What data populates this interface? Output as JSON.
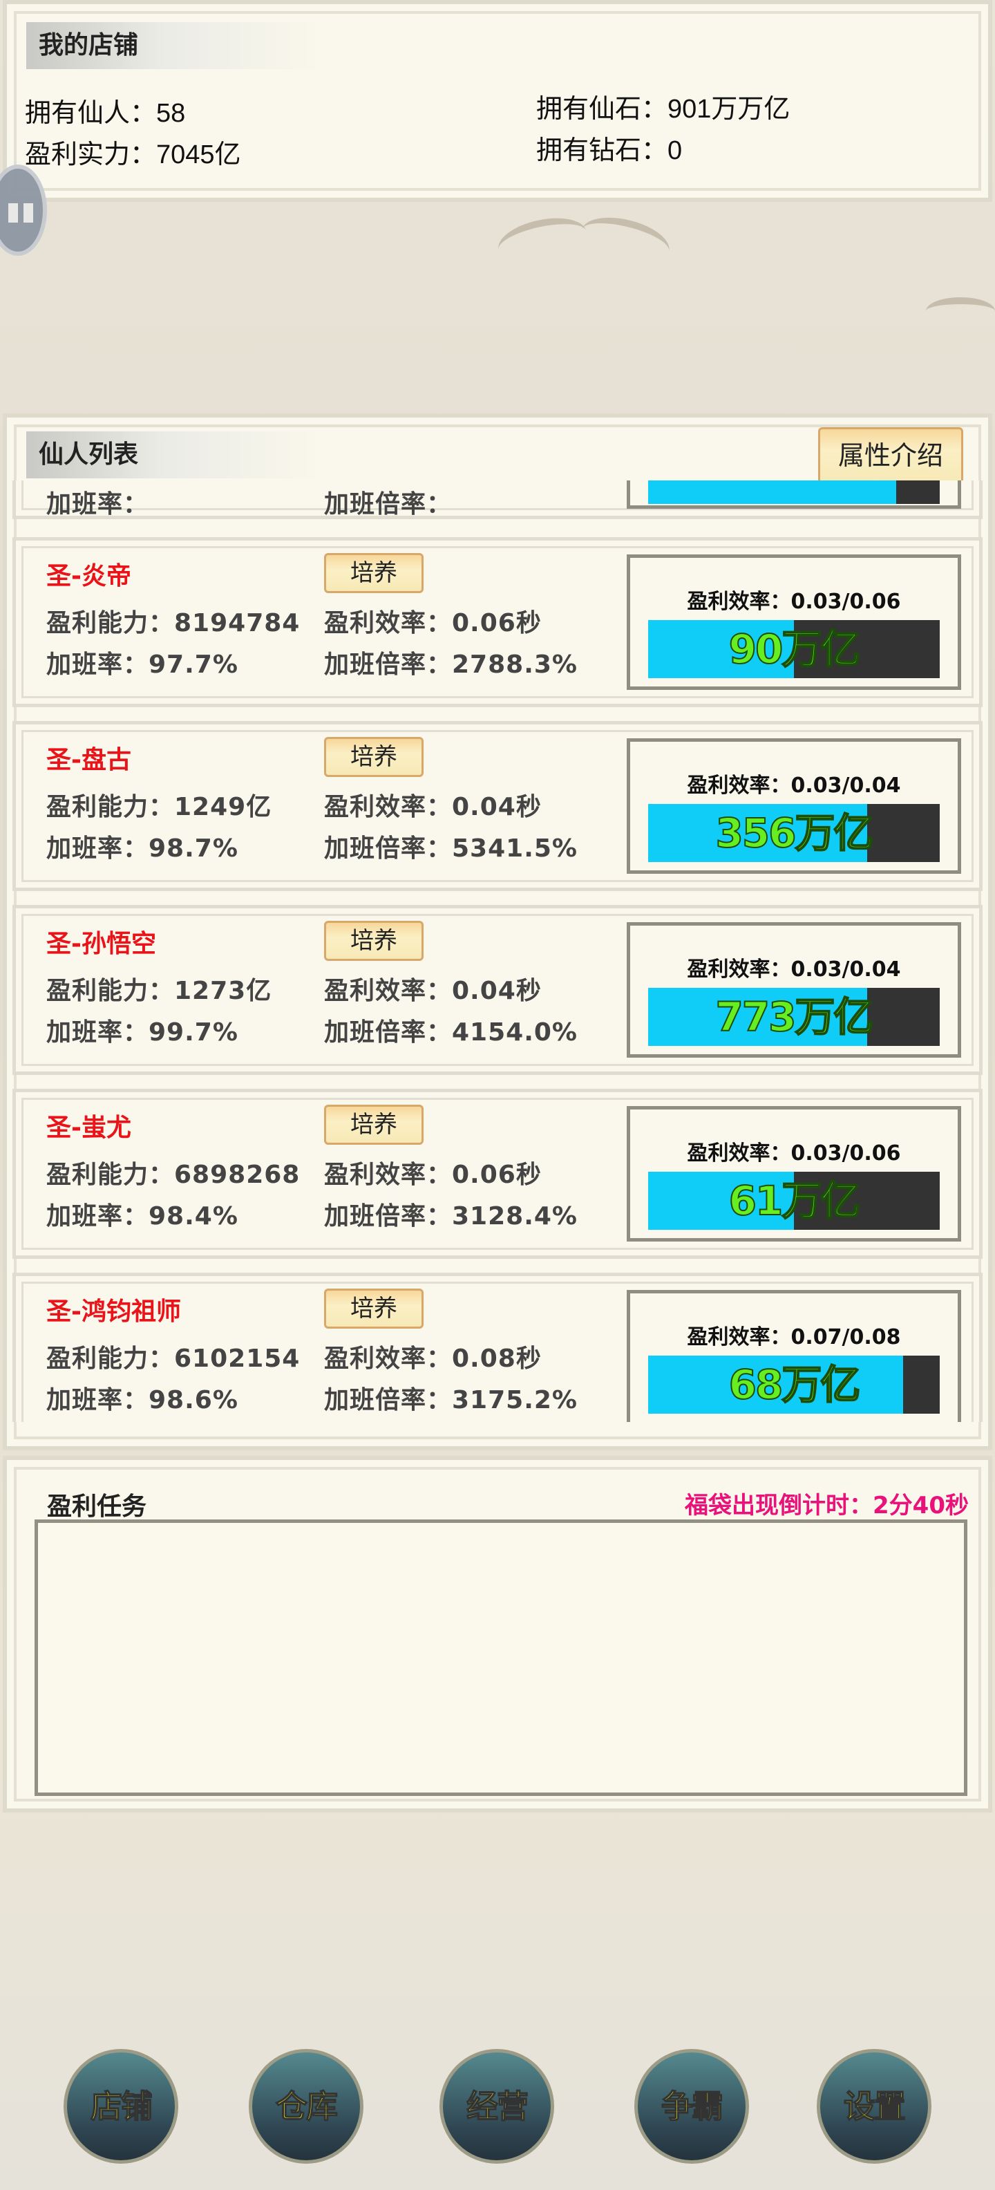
{
  "shop": {
    "title": "我的店铺",
    "immortals": "拥有仙人：58",
    "profit_power": "盈利实力：7045亿",
    "stones": "拥有仙石：901万万亿",
    "diamonds": "拥有钻石：0"
  },
  "list": {
    "title": "仙人列表",
    "attr_button": "属性介绍",
    "train_label": "培养",
    "partial": {
      "overtime_rate": "加班率：",
      "overtime_mult": "加班倍率：",
      "progress": 0.85
    },
    "items": [
      {
        "name": "圣-炎帝",
        "ability": "盈利能力：8194784",
        "efficiency": "盈利效率：0.06秒",
        "overtime_rate": "加班率：97.7%",
        "overtime_mult": "加班倍率：2788.3%",
        "progress_text": "盈利效率：0.03/0.06",
        "progress": 0.5,
        "float_text": "90万亿"
      },
      {
        "name": "圣-盘古",
        "ability": "盈利能力：1249亿",
        "efficiency": "盈利效率：0.04秒",
        "overtime_rate": "加班率：98.7%",
        "overtime_mult": "加班倍率：5341.5%",
        "progress_text": "盈利效率：0.03/0.04",
        "progress": 0.75,
        "float_text": "356万亿"
      },
      {
        "name": "圣-孙悟空",
        "ability": "盈利能力：1273亿",
        "efficiency": "盈利效率：0.04秒",
        "overtime_rate": "加班率：99.7%",
        "overtime_mult": "加班倍率：4154.0%",
        "progress_text": "盈利效率：0.03/0.04",
        "progress": 0.75,
        "float_text": "773万亿"
      },
      {
        "name": "圣-蚩尤",
        "ability": "盈利能力：6898268",
        "efficiency": "盈利效率：0.06秒",
        "overtime_rate": "加班率：98.4%",
        "overtime_mult": "加班倍率：3128.4%",
        "progress_text": "盈利效率：0.03/0.06",
        "progress": 0.5,
        "float_text": "61万亿"
      },
      {
        "name": "圣-鸿钧祖师",
        "ability": "盈利能力：6102154",
        "efficiency": "盈利效率：0.08秒",
        "overtime_rate": "加班率：98.6%",
        "overtime_mult": "加班倍率：3175.2%",
        "progress_text": "盈利效率：0.07/0.08",
        "progress": 0.875,
        "float_text": "68万亿"
      }
    ]
  },
  "task": {
    "title": "盈利任务",
    "countdown": "福袋出现倒计时：2分40秒"
  },
  "nav": [
    {
      "label": "店铺"
    },
    {
      "label": "仓库"
    },
    {
      "label": "经营"
    },
    {
      "label": "争霸"
    },
    {
      "label": "设置"
    }
  ],
  "colors": {
    "name": "#e8141a",
    "countdown": "#e8127a",
    "bar_fill": "#10cdf8",
    "bar_bg": "#333333",
    "nav_text": "#f5f51a",
    "float_text": "#66ee22"
  }
}
